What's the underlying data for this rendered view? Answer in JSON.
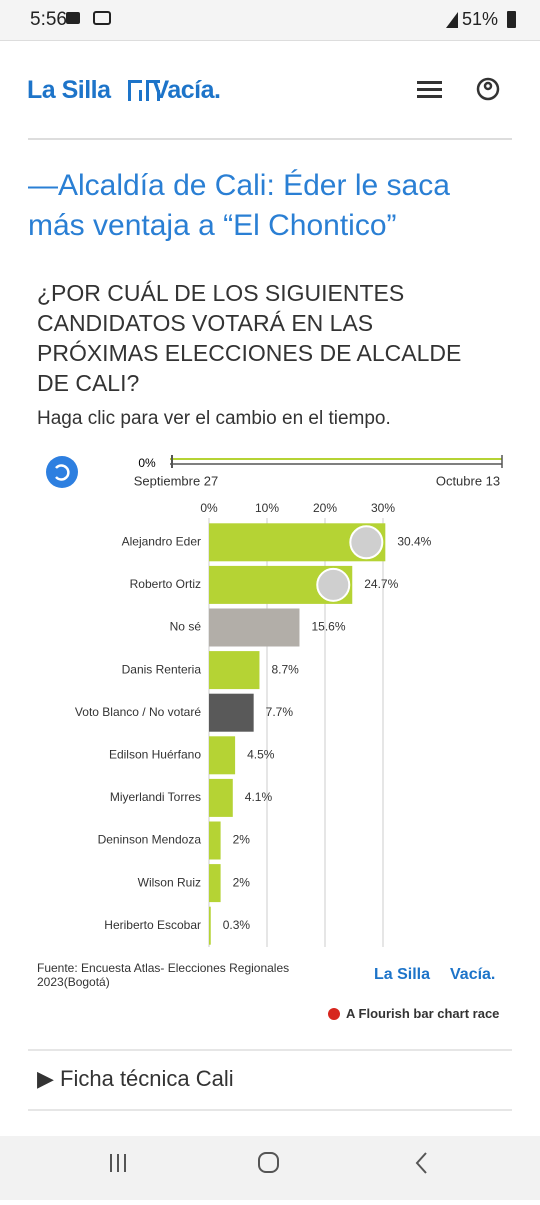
{
  "status_bar": {
    "time": "5:56",
    "battery": "51%"
  },
  "header": {
    "logo_left": "La Silla",
    "logo_right": "Vacía."
  },
  "article": {
    "title": "—Alcaldía de Cali: Éder le saca más ventaja a “El Chontico”"
  },
  "chart_data": {
    "type": "bar",
    "orientation": "horizontal",
    "title": "¿POR CUÁL DE LOS SIGUIENTES CANDIDATOS VOTARÁ EN LAS PRÓXIMAS ELECCIONES DE ALCALDE DE CALI?",
    "subtitle": "Haga clic para ver el cambio en el tiempo.",
    "timeline": {
      "value": "0%",
      "start": "Septiembre 27",
      "end": "Octubre 13"
    },
    "categories": [
      "Alejandro Eder",
      "Roberto Ortiz",
      "No sé",
      "Danis Renteria",
      "Voto Blanco / No votaré",
      "Edilson Huérfano",
      "Miyerlandi Torres",
      "Deninson Mendoza",
      "Wilson Ruiz",
      "Heriberto Escobar"
    ],
    "values": [
      30.4,
      24.7,
      15.6,
      8.7,
      7.7,
      4.5,
      4.1,
      2,
      2,
      0.3
    ],
    "value_labels": [
      "30.4%",
      "24.7%",
      "15.6%",
      "8.7%",
      "7.7%",
      "4.5%",
      "4.1%",
      "2%",
      "2%",
      "0.3%"
    ],
    "colors": [
      "#b5d334",
      "#b5d334",
      "#b2aea8",
      "#b5d334",
      "#595959",
      "#b5d334",
      "#b5d334",
      "#b5d334",
      "#b5d334",
      "#b5d334"
    ],
    "xlim": [
      0,
      30
    ],
    "xticks": [
      {
        "value": 0,
        "label": "0%"
      },
      {
        "value": 10,
        "label": "10%"
      },
      {
        "value": 20,
        "label": "20%"
      },
      {
        "value": 30,
        "label": "30%"
      }
    ],
    "grid": true,
    "source": "Fuente: Encuesta Atlas- Elecciones Regionales 2023(Bogotá)",
    "logo_left": "La Silla",
    "logo_right": "Vacía.",
    "credit": "A Flourish bar chart race"
  },
  "details": {
    "summary": "▶ Ficha técnica Cali"
  }
}
